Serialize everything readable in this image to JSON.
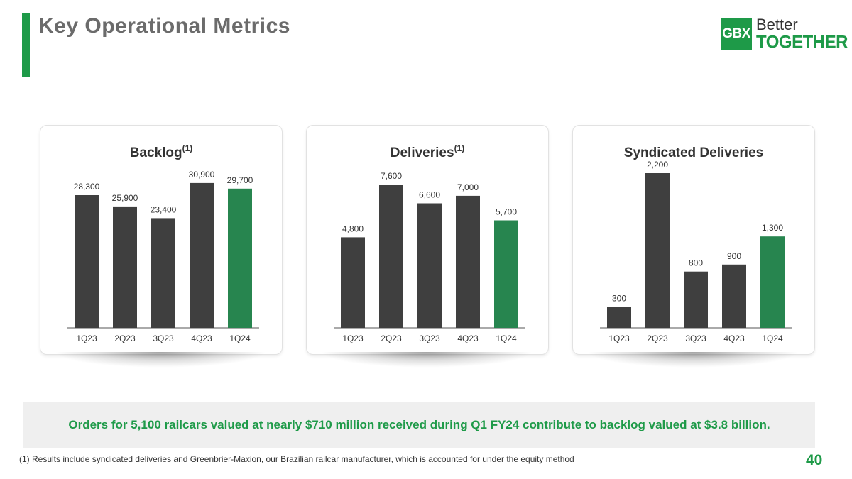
{
  "header": {
    "title": "Key Operational Metrics"
  },
  "logo": {
    "mark": "GBX",
    "line1": "Better",
    "line2": "TOGETHER"
  },
  "colors": {
    "accent": "#1e9a48",
    "bar_dark": "#3f3f3f",
    "bar_highlight": "#27854f"
  },
  "chart_data": [
    {
      "type": "bar",
      "title": "Backlog",
      "title_sup": "(1)",
      "categories": [
        "1Q23",
        "2Q23",
        "3Q23",
        "4Q23",
        "1Q24"
      ],
      "values": [
        28300,
        25900,
        23400,
        30900,
        29700
      ],
      "labels": [
        "28,300",
        "25,900",
        "23,400",
        "30,900",
        "29,700"
      ],
      "highlight_index": 4,
      "ylim": [
        0,
        33000
      ],
      "xlabel": "",
      "ylabel": ""
    },
    {
      "type": "bar",
      "title": "Deliveries",
      "title_sup": "(1)",
      "categories": [
        "1Q23",
        "2Q23",
        "3Q23",
        "4Q23",
        "1Q24"
      ],
      "values": [
        4800,
        7600,
        6600,
        7000,
        5700
      ],
      "labels": [
        "4,800",
        "7,600",
        "6,600",
        "7,000",
        "5,700"
      ],
      "highlight_index": 4,
      "ylim": [
        0,
        8200
      ],
      "xlabel": "",
      "ylabel": ""
    },
    {
      "type": "bar",
      "title": "Syndicated Deliveries",
      "title_sup": "",
      "categories": [
        "1Q23",
        "2Q23",
        "3Q23",
        "4Q23",
        "1Q24"
      ],
      "values": [
        300,
        2200,
        800,
        900,
        1300
      ],
      "labels": [
        "300",
        "2,200",
        "800",
        "900",
        "1,300"
      ],
      "highlight_index": 4,
      "ylim": [
        0,
        2200
      ],
      "xlabel": "",
      "ylabel": ""
    }
  ],
  "summary": {
    "text": "Orders for 5,100 railcars valued at nearly $710 million received during Q1 FY24 contribute to backlog valued at $3.8 billion."
  },
  "footnote": {
    "text": "(1) Results include syndicated deliveries and Greenbrier-Maxion, our Brazilian railcar manufacturer, which is accounted for under the equity method"
  },
  "page": {
    "number": "40"
  }
}
